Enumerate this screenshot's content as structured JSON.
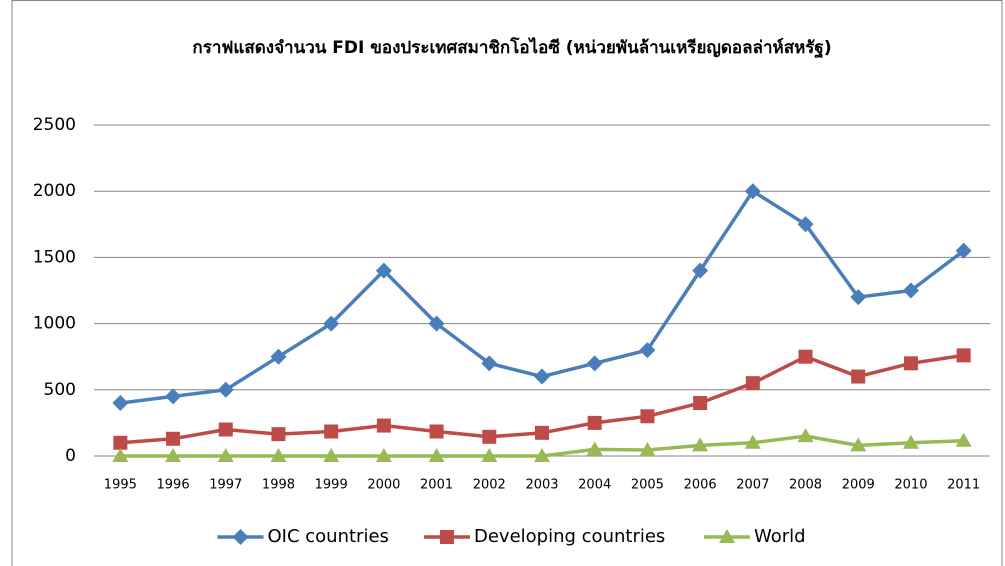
{
  "chart_data": {
    "type": "line",
    "title": "กราฟแสดงจำนวน FDI ของประเทศสมาชิกโอไอซี (หน่วยพันล้านเหรียญดอลล่าห์สหรัฐ)",
    "categories": [
      "1995",
      "1996",
      "1997",
      "1998",
      "1999",
      "2000",
      "2001",
      "2002",
      "2003",
      "2004",
      "2005",
      "2006",
      "2007",
      "2008",
      "2009",
      "2010",
      "2011"
    ],
    "series": [
      {
        "name": "OIC countries",
        "color": "#4a7ebb",
        "marker": "diamond",
        "values": [
          400,
          450,
          500,
          750,
          1000,
          1400,
          1000,
          700,
          600,
          700,
          800,
          1400,
          2000,
          1750,
          1200,
          1250,
          1550
        ]
      },
      {
        "name": "Developing countries",
        "color": "#be4b48",
        "marker": "square",
        "values": [
          100,
          130,
          200,
          165,
          185,
          230,
          185,
          145,
          175,
          250,
          300,
          400,
          550,
          750,
          600,
          700,
          760
        ]
      },
      {
        "name": "World",
        "color": "#98b954",
        "marker": "triangle",
        "values": [
          0,
          0,
          0,
          0,
          0,
          0,
          0,
          0,
          0,
          50,
          45,
          80,
          100,
          150,
          80,
          100,
          115
        ]
      }
    ],
    "ylim": [
      0,
      2500
    ],
    "yticks": [
      0,
      500,
      1000,
      1500,
      2000,
      2500
    ],
    "grid": true,
    "legend": "bottom"
  }
}
